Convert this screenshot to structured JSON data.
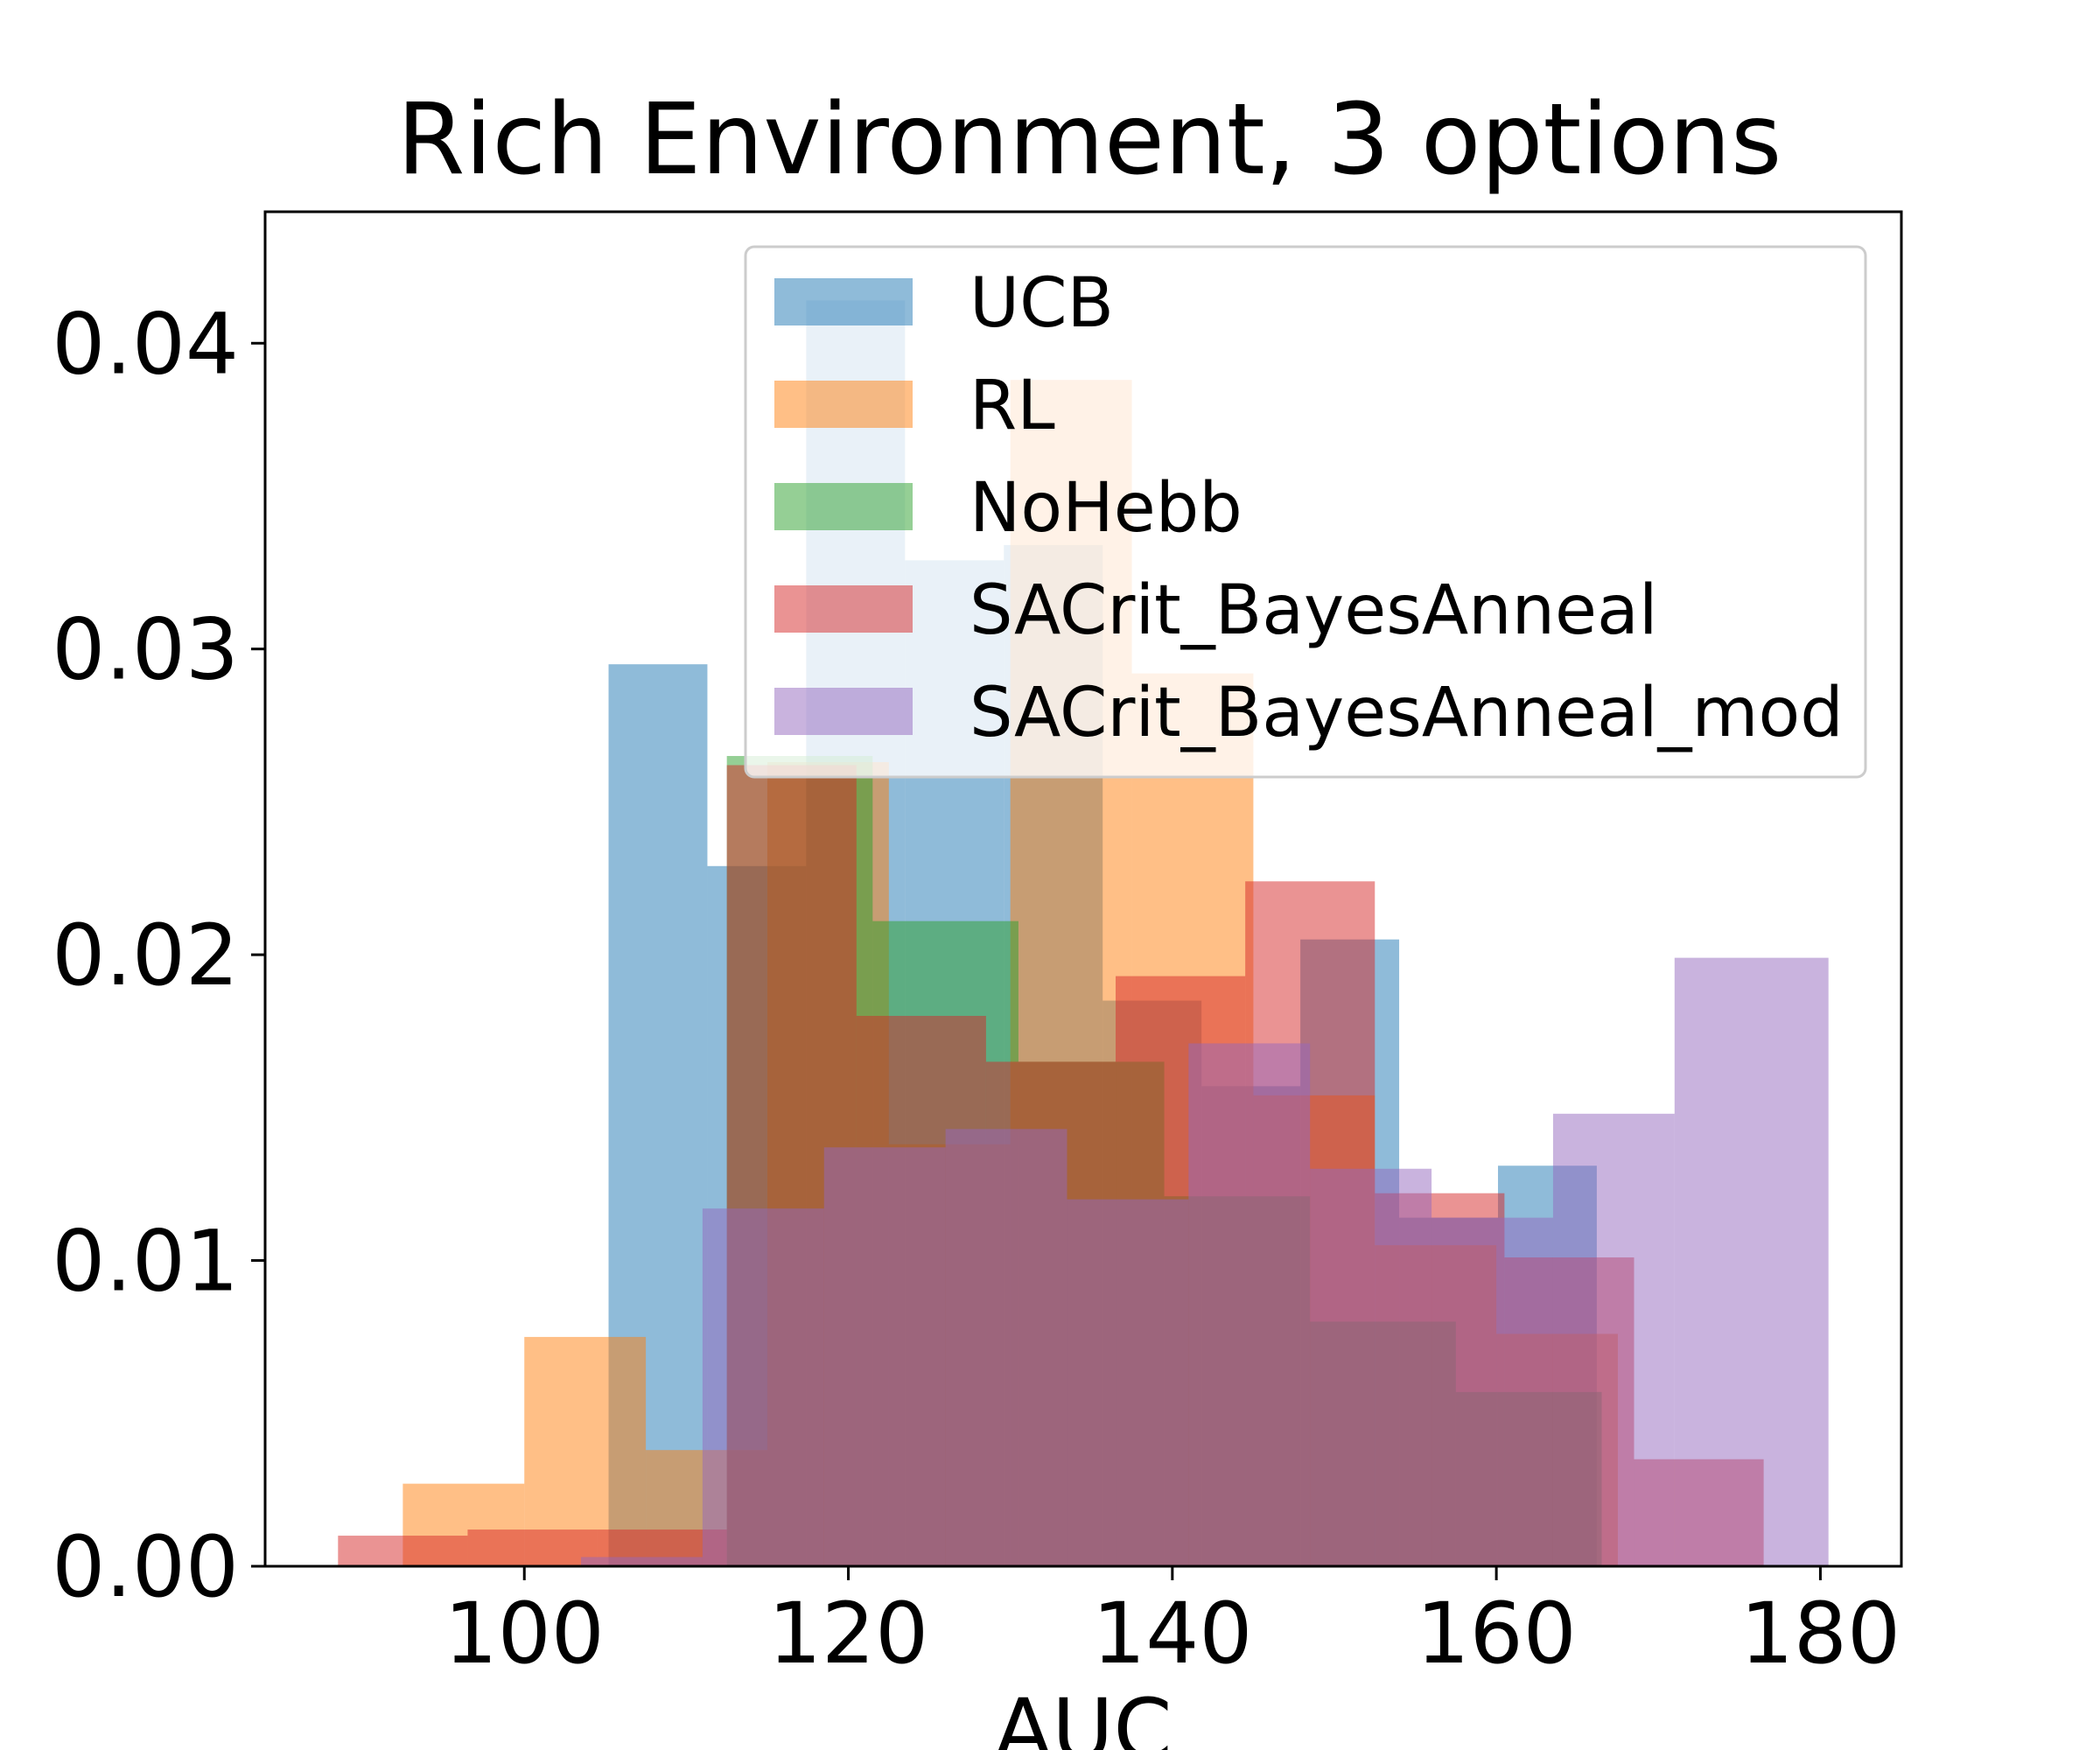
{
  "chart_data": {
    "type": "histogram",
    "title": "Rich Environment, 3 options",
    "xlabel": "AUC",
    "ylabel": "",
    "xlim": [
      84,
      185
    ],
    "ylim": [
      0,
      0.0443
    ],
    "xticks": [
      100,
      120,
      140,
      160,
      180
    ],
    "xtick_labels": [
      "100",
      "120",
      "140",
      "160",
      "180"
    ],
    "yticks": [
      0.0,
      0.01,
      0.02,
      0.03,
      0.04
    ],
    "ytick_labels": [
      "0.00",
      "0.01",
      "0.02",
      "0.03",
      "0.04"
    ],
    "grid": false,
    "legend_position": "top-right",
    "alpha": 0.5,
    "series": [
      {
        "name": "UCB",
        "color": "#1f77b4",
        "bins": [
          [
            105.2,
            111.3,
            0.0295
          ],
          [
            111.3,
            117.4,
            0.0229
          ],
          [
            117.4,
            123.5,
            0.0414
          ],
          [
            123.5,
            129.6,
            0.0329
          ],
          [
            129.6,
            135.7,
            0.0334
          ],
          [
            135.7,
            141.8,
            0.0185
          ],
          [
            141.8,
            147.9,
            0.0157
          ],
          [
            147.9,
            154.0,
            0.0205
          ],
          [
            154.0,
            160.1,
            0.0114
          ],
          [
            160.1,
            166.2,
            0.0131
          ],
          [
            111.3,
            105.2,
            0.0
          ]
        ]
      },
      {
        "name": "RL",
        "color": "#ff7f0e",
        "bins": [
          [
            92.5,
            100.0,
            0.0027
          ],
          [
            100.0,
            107.5,
            0.0075
          ],
          [
            107.5,
            115.0,
            0.0038
          ],
          [
            115.0,
            122.5,
            0.0263
          ],
          [
            122.5,
            130.0,
            0.0138
          ],
          [
            130.0,
            137.5,
            0.0388
          ],
          [
            137.5,
            145.0,
            0.0292
          ],
          [
            145.0,
            152.5,
            0.0154
          ],
          [
            152.5,
            160.0,
            0.0105
          ],
          [
            160.0,
            167.5,
            0.0076
          ]
        ]
      },
      {
        "name": "NoHebb",
        "color": "#2ca02c",
        "bins": [
          [
            112.5,
            121.5,
            0.0265
          ],
          [
            121.5,
            130.5,
            0.0211
          ],
          [
            130.5,
            139.5,
            0.0165
          ],
          [
            139.5,
            148.5,
            0.0121
          ],
          [
            148.5,
            157.5,
            0.008
          ],
          [
            157.5,
            166.5,
            0.0057
          ]
        ]
      },
      {
        "name": "SACrit_BayesAnneal",
        "color": "#d62728",
        "bins": [
          [
            88.5,
            96.5,
            0.001
          ],
          [
            96.5,
            104.5,
            0.0012
          ],
          [
            104.5,
            112.5,
            0.0012
          ],
          [
            112.5,
            120.5,
            0.0262
          ],
          [
            120.5,
            128.5,
            0.018
          ],
          [
            128.5,
            136.5,
            0.0165
          ],
          [
            136.5,
            144.5,
            0.0193
          ],
          [
            144.5,
            152.5,
            0.0224
          ],
          [
            152.5,
            160.5,
            0.0122
          ],
          [
            160.5,
            168.5,
            0.0101
          ],
          [
            168.5,
            176.5,
            0.0035
          ]
        ]
      },
      {
        "name": "SACrit_BayesAnneal_mod",
        "color": "#9467bd",
        "bins": [
          [
            103.5,
            111.0,
            0.0003
          ],
          [
            111.0,
            118.5,
            0.0117
          ],
          [
            118.5,
            126.0,
            0.0137
          ],
          [
            126.0,
            133.5,
            0.0143
          ],
          [
            133.5,
            141.0,
            0.012
          ],
          [
            141.0,
            148.5,
            0.0171
          ],
          [
            148.5,
            156.0,
            0.013
          ],
          [
            156.0,
            163.5,
            0.0114
          ],
          [
            163.5,
            171.0,
            0.0148
          ],
          [
            171.0,
            180.5,
            0.0199
          ]
        ]
      }
    ]
  }
}
